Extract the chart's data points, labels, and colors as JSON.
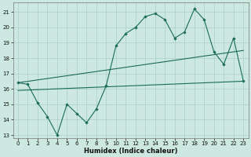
{
  "xlabel": "Humidex (Indice chaleur)",
  "bg_color": "#cce8e0",
  "grid_color": "#aacfca",
  "line_color": "#1a6b5a",
  "xlim": [
    -0.5,
    23.5
  ],
  "ylim": [
    12.8,
    21.6
  ],
  "yticks": [
    13,
    14,
    15,
    16,
    17,
    18,
    19,
    20,
    21
  ],
  "xticks": [
    0,
    1,
    2,
    3,
    4,
    5,
    6,
    7,
    8,
    9,
    10,
    11,
    12,
    13,
    14,
    15,
    16,
    17,
    18,
    19,
    20,
    21,
    22,
    23
  ],
  "series1_x": [
    0,
    1,
    2,
    3,
    4,
    5,
    6,
    7,
    8,
    9,
    10,
    11,
    12,
    13,
    14,
    15,
    16,
    17,
    18,
    19,
    20,
    21,
    22,
    23
  ],
  "series1_y": [
    16.4,
    16.3,
    15.1,
    14.2,
    13.0,
    15.0,
    14.4,
    13.8,
    14.7,
    16.2,
    18.8,
    19.6,
    20.0,
    20.7,
    20.9,
    20.5,
    19.3,
    19.7,
    21.2,
    20.5,
    18.4,
    17.6,
    19.3,
    16.5
  ],
  "series2_x": [
    0,
    23
  ],
  "series2_y": [
    16.4,
    18.5
  ],
  "series3_x": [
    0,
    23
  ],
  "series3_y": [
    15.9,
    16.5
  ]
}
